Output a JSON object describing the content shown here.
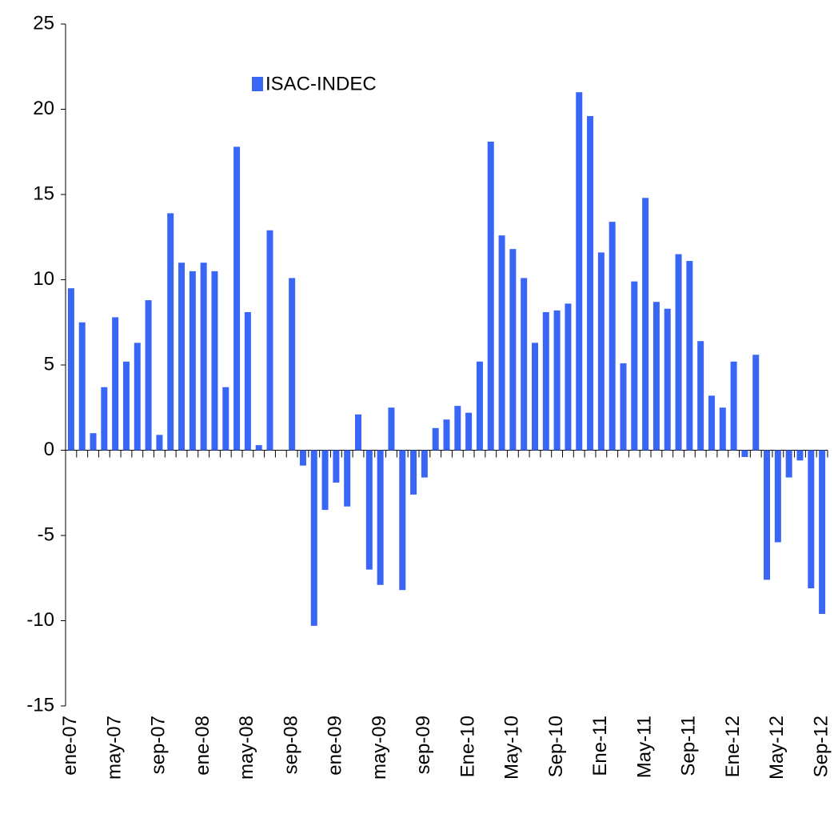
{
  "chart_data": {
    "type": "bar",
    "categories": [
      "ene-07",
      null,
      null,
      null,
      "may-07",
      null,
      null,
      null,
      "sep-07",
      null,
      null,
      null,
      "ene-08",
      null,
      null,
      null,
      "may-08",
      null,
      null,
      null,
      "sep-08",
      null,
      null,
      null,
      "ene-09",
      null,
      null,
      null,
      "may-09",
      null,
      null,
      null,
      "sep-09",
      null,
      null,
      null,
      "Ene-10",
      null,
      null,
      null,
      "May-10",
      null,
      null,
      null,
      "Sep-10",
      null,
      null,
      null,
      "Ene-11",
      null,
      null,
      null,
      "May-11",
      null,
      null,
      null,
      "Sep-11",
      null,
      null,
      null,
      "Ene-12",
      null,
      null,
      null,
      "May-12",
      null,
      null,
      null,
      "Sep-12"
    ],
    "series": [
      {
        "name": "ISAC-INDEC",
        "color": "#3a66f5",
        "values": [
          9.5,
          7.5,
          1.0,
          3.7,
          7.8,
          5.2,
          6.3,
          8.8,
          0.9,
          13.9,
          11.0,
          10.5,
          11.0,
          10.5,
          3.7,
          17.8,
          8.1,
          0.3,
          12.9,
          0,
          10.1,
          -0.9,
          -10.3,
          -3.5,
          -1.9,
          -3.3,
          2.1,
          -7.0,
          -7.9,
          2.5,
          -8.2,
          -2.6,
          -1.6,
          1.3,
          1.8,
          2.6,
          2.2,
          5.2,
          18.1,
          12.6,
          11.8,
          10.1,
          6.3,
          8.1,
          8.2,
          8.6,
          21.0,
          19.6,
          11.6,
          13.4,
          5.1,
          9.9,
          14.8,
          8.7,
          8.3,
          11.5,
          11.1,
          6.4,
          3.2,
          2.5,
          5.2,
          -0.4,
          5.6,
          -7.6,
          -5.4,
          -1.6,
          -0.6,
          -8.1,
          -9.6
        ]
      }
    ],
    "ylim": [
      -15,
      25
    ],
    "yticks": [
      -15,
      -10,
      -5,
      0,
      5,
      10,
      15,
      20,
      25
    ],
    "grid": false
  }
}
